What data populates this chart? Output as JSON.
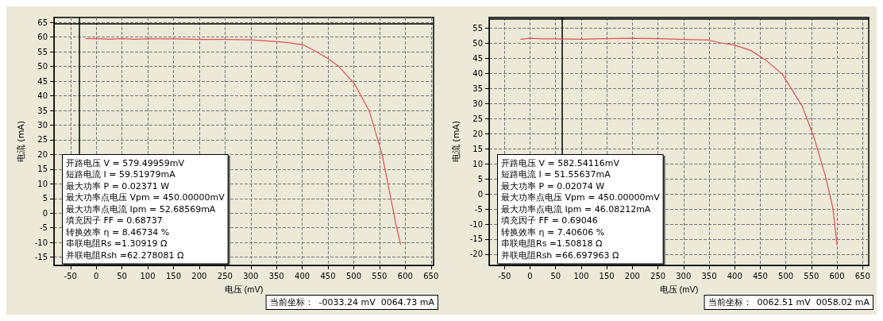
{
  "chart_data": [
    {
      "type": "line",
      "xlabel": "电压 (mV)",
      "ylabel": "电流 (mA)",
      "xlim": [
        -82,
        655
      ],
      "ylim": [
        -17.8,
        66.7
      ],
      "xticks": [
        -50,
        0,
        50,
        100,
        150,
        200,
        250,
        300,
        350,
        400,
        450,
        500,
        550,
        600,
        650
      ],
      "yticks": [
        -15,
        -10,
        -5,
        0,
        5,
        10,
        15,
        20,
        25,
        30,
        35,
        40,
        45,
        50,
        55,
        60,
        65
      ],
      "grid": true,
      "marker": "none",
      "line_style": "solid",
      "series": [
        {
          "color": "#e05050",
          "x": [
            -20,
            0,
            25,
            50,
            75,
            100,
            150,
            200,
            250,
            300,
            333,
            370,
            403,
            430,
            450,
            470,
            501,
            530,
            555,
            573,
            581,
            591
          ],
          "values": [
            59.5,
            59.5,
            59.3,
            59.5,
            59.3,
            59.4,
            59.4,
            59.2,
            59.2,
            59.1,
            58.7,
            58.2,
            57.3,
            54.8,
            52.7,
            50.2,
            44.2,
            34.9,
            20,
            4.2,
            -3.1,
            -10.6
          ]
        }
      ],
      "ref_lines": [
        {
          "axis": "x",
          "value": -33.24,
          "color": "#000000"
        },
        {
          "axis": "y",
          "value": 64.73,
          "color": "#000000"
        }
      ],
      "annotations": [
        "开路电压 V = 579.49959mV",
        "短路电流 I = 59.51979mA",
        "最大功率 P = 0.02371 W",
        "最大功率点电压 Vpm = 450.00000mV",
        "最大功率点电流 Ipm = 52.68569mA",
        "填充因子 FF = 0.68737",
        "转换效率 η = 8.46734 %",
        "串联电阻Rs =1.30919 Ω",
        "并联电阻Rsh =62.278081 Ω",
        "当前坐标：  -0033.24 mV  0064.73 mA"
      ]
    },
    {
      "type": "line",
      "xlabel": "电压 (mV)",
      "ylabel": "电流 (mA)",
      "xlim": [
        -80,
        662
      ],
      "ylim": [
        -23.7,
        58.5
      ],
      "xticks": [
        -50,
        0,
        50,
        100,
        150,
        200,
        250,
        300,
        350,
        400,
        450,
        500,
        550,
        600,
        650
      ],
      "yticks": [
        -20,
        -15,
        -10,
        -5,
        0,
        5,
        10,
        15,
        20,
        25,
        30,
        35,
        40,
        45,
        50,
        55
      ],
      "grid": true,
      "marker": "none",
      "line_style": "solid",
      "series": [
        {
          "color": "#e05050",
          "x": [
            -18,
            0,
            25,
            50,
            100,
            150,
            200,
            250,
            300,
            350,
            369,
            400,
            431,
            460,
            493,
            532,
            555,
            577,
            592,
            600
          ],
          "values": [
            51.3,
            51.6,
            51.4,
            51.4,
            51.3,
            51.5,
            51.6,
            51.5,
            51.2,
            51,
            50.2,
            49.3,
            47.6,
            44.5,
            39.7,
            29.1,
            18.8,
            6.1,
            -4.7,
            -16.8
          ]
        }
      ],
      "ref_lines": [
        {
          "axis": "x",
          "value": 62.51,
          "color": "#000000"
        },
        {
          "axis": "y",
          "value": 58.02,
          "color": "#000000"
        }
      ],
      "annotations": [
        "开路电压 V = 582.54116mV",
        "短路电流 I = 51.55637mA",
        "最大功率 P = 0.02074 W",
        "最大功率点电压 Vpm = 450.00000mV",
        "最大功率点电流 Ipm = 46.08212mA",
        "填充因子 FF = 0.69046",
        "转换效率 η = 7.40606 %",
        "串联电阻Rs =1.50818 Ω",
        "并联电阻Rsh =66.697963 Ω",
        "当前坐标：  0062.51 mV  0058.02 mA"
      ]
    }
  ]
}
